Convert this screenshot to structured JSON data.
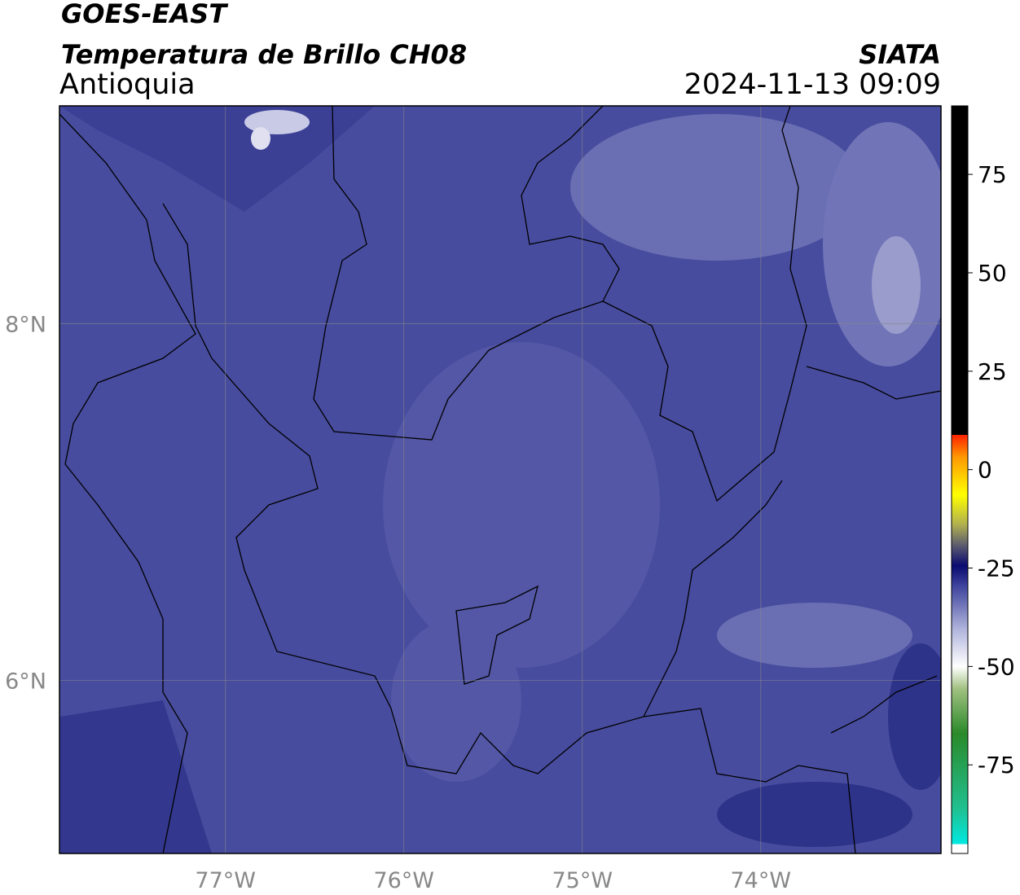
{
  "header": {
    "title": "GOES-EAST",
    "subtitle": "Temperatura de Brillo CH08",
    "region": "Antioquia",
    "source": "SIATA",
    "timestamp": "2024-11-13 09:09"
  },
  "map": {
    "xlim": [
      -77.93,
      -72.99
    ],
    "ylim": [
      5.03,
      9.22
    ],
    "xticks": [
      {
        "value": -77,
        "label": "77°W"
      },
      {
        "value": -76,
        "label": "76°W"
      },
      {
        "value": -75,
        "label": "75°W"
      },
      {
        "value": -74,
        "label": "74°W"
      }
    ],
    "yticks": [
      {
        "value": 8,
        "label": "8°N"
      },
      {
        "value": 6,
        "label": "6°N"
      }
    ]
  },
  "colorbar": {
    "lim": [
      -97.5,
      92.4
    ],
    "ticks": [
      75,
      50,
      25,
      0,
      -25,
      -50,
      -75
    ]
  }
}
